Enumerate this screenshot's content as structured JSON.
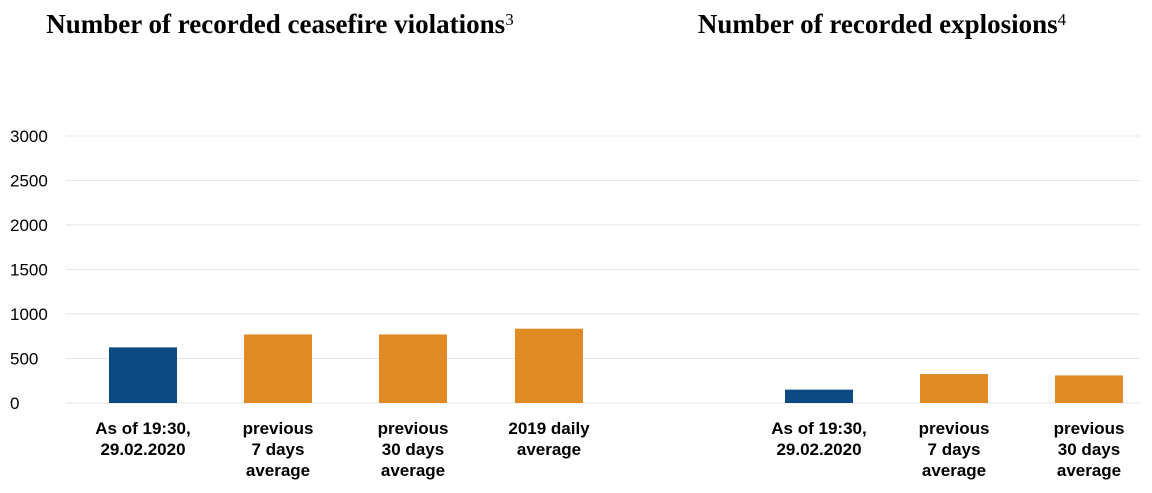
{
  "titles": {
    "left": "Number of recorded ceasefire violations",
    "left_note": "3",
    "right": "Number of recorded explosions",
    "right_note": "4"
  },
  "colors": {
    "current": "#0d4a85",
    "average": "#e08a25",
    "grid": "#e6e6e6"
  },
  "chart_data": [
    {
      "type": "bar",
      "title": "Number of recorded ceasefire violations",
      "categories": [
        [
          "As of 19:30,",
          "29.02.2020"
        ],
        [
          "previous",
          "7 days",
          "average"
        ],
        [
          "previous",
          "30 days",
          "average"
        ],
        [
          "2019 daily",
          "average"
        ]
      ],
      "values": [
        625,
        770,
        770,
        835
      ],
      "bar_colors": [
        "current",
        "average",
        "average",
        "average"
      ],
      "ylim": [
        0,
        3000
      ],
      "yticks": [
        0,
        500,
        1000,
        1500,
        2000,
        2500,
        3000
      ],
      "grid": true
    },
    {
      "type": "bar",
      "title": "Number of recorded explosions",
      "categories": [
        [
          "As of 19:30,",
          "29.02.2020"
        ],
        [
          "previous",
          "7 days",
          "average"
        ],
        [
          "previous",
          "30 days",
          "average"
        ]
      ],
      "values": [
        150,
        325,
        310
      ],
      "bar_colors": [
        "current",
        "average",
        "average"
      ],
      "ylim": [
        0,
        3000
      ],
      "grid": true
    }
  ]
}
